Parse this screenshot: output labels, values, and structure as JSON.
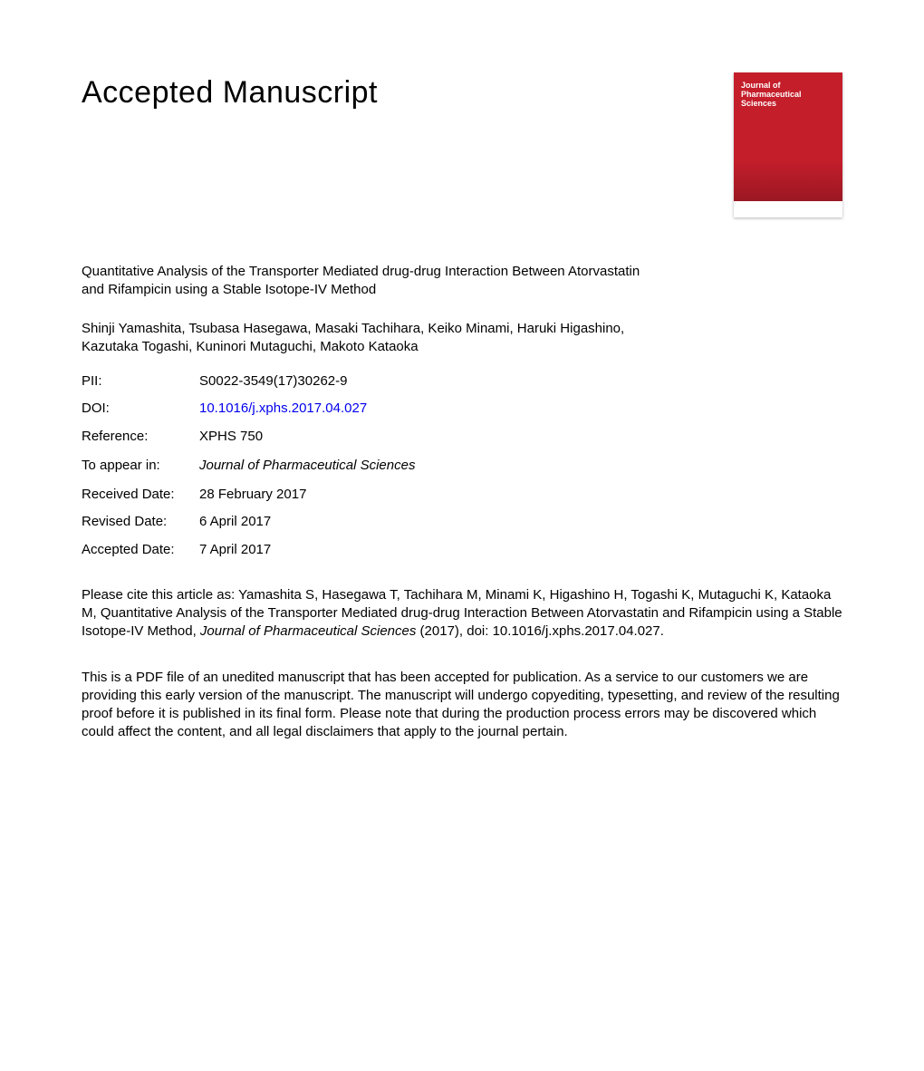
{
  "header": {
    "title": "Accepted Manuscript"
  },
  "cover": {
    "journal_name": "Journal of\nPharmaceutical\nSciences",
    "bg_top": "#c41e2a",
    "bg_bottom": "#8b1520",
    "strip_color": "#ffffff"
  },
  "article": {
    "title": "Quantitative Analysis of the Transporter Mediated drug-drug Interaction Between Atorvastatin and Rifampicin using a Stable Isotope-IV Method",
    "authors": "Shinji Yamashita, Tsubasa Hasegawa, Masaki Tachihara, Keiko Minami, Haruki Higashino, Kazutaka Togashi, Kuninori Mutaguchi, Makoto Kataoka"
  },
  "meta": {
    "pii_label": "PII:",
    "pii_value": "S0022-3549(17)30262-9",
    "doi_label": "DOI:",
    "doi_value": "10.1016/j.xphs.2017.04.027",
    "reference_label": "Reference:",
    "reference_value": "XPHS 750",
    "appear_label": "To appear in:",
    "appear_value": "Journal of Pharmaceutical Sciences",
    "received_label": "Received Date:",
    "received_value": "28 February 2017",
    "revised_label": "Revised Date:",
    "revised_value": "6 April 2017",
    "accepted_label": "Accepted Date:",
    "accepted_value": "7 April 2017"
  },
  "citation": {
    "prefix": "Please cite this article as: Yamashita S, Hasegawa T, Tachihara M, Minami K, Higashino H, Togashi K, Mutaguchi K, Kataoka M, Quantitative Analysis of the Transporter Mediated drug-drug Interaction Between Atorvastatin and Rifampicin using a Stable Isotope-IV Method, ",
    "journal_italic": "Journal of Pharmaceutical Sciences",
    "suffix": " (2017), doi: 10.1016/j.xphs.2017.04.027."
  },
  "disclaimer": {
    "text": "This is a PDF file of an unedited manuscript that has been accepted for publication. As a service to our customers we are providing this early version of the manuscript. The manuscript will undergo copyediting, typesetting, and review of the resulting proof before it is published in its final form. Please note that during the production process errors may be discovered which could affect the content, and all legal disclaimers that apply to the journal pertain."
  },
  "colors": {
    "link": "#0000ee",
    "text": "#000000",
    "background": "#ffffff"
  },
  "typography": {
    "title_fontsize": 34,
    "body_fontsize": 15,
    "font_family": "Arial"
  }
}
